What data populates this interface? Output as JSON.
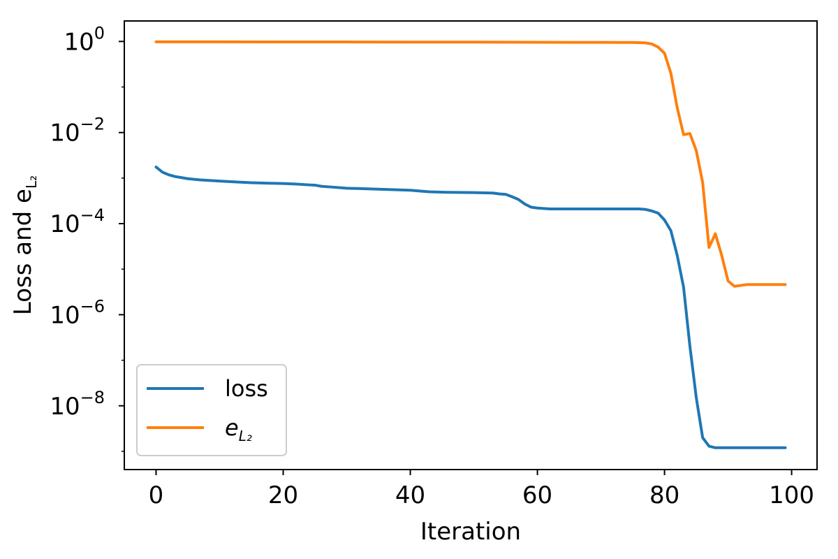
{
  "chart_data": {
    "type": "line",
    "xlabel": "Iteration",
    "ylabel": "Loss and e_{L₂}",
    "ylabel_parts": {
      "main": "Loss and e",
      "sub": "L₂"
    },
    "y_scale": "log",
    "xlim": [
      -5,
      104
    ],
    "ylim_exponent": [
      -9.4,
      0.45
    ],
    "x_ticks": [
      {
        "value": 0,
        "label": "0"
      },
      {
        "value": 20,
        "label": "20"
      },
      {
        "value": 40,
        "label": "40"
      },
      {
        "value": 60,
        "label": "60"
      },
      {
        "value": 80,
        "label": "80"
      },
      {
        "value": 100,
        "label": "100"
      }
    ],
    "y_ticks": [
      {
        "exponent": 0,
        "base": "10",
        "exp": "0"
      },
      {
        "exponent": -2,
        "base": "10",
        "exp": "−2"
      },
      {
        "exponent": -4,
        "base": "10",
        "exp": "−4"
      },
      {
        "exponent": -6,
        "base": "10",
        "exp": "−6"
      },
      {
        "exponent": -8,
        "base": "10",
        "exp": "−8"
      }
    ],
    "grid": false,
    "legend_position": "lower-left",
    "series": [
      {
        "name": "loss",
        "color": "#1f77b4",
        "x": [
          0,
          1,
          2,
          3,
          5,
          7,
          10,
          12,
          15,
          18,
          20,
          22,
          24,
          25,
          26,
          28,
          30,
          35,
          40,
          43,
          45,
          50,
          53,
          54,
          55,
          56,
          57,
          58,
          59,
          60,
          62,
          65,
          70,
          75,
          76,
          77,
          78,
          79,
          80,
          81,
          82,
          83,
          84,
          85,
          86,
          87,
          88,
          90,
          95,
          99
        ],
        "y": [
          0.00175,
          0.00135,
          0.00118,
          0.00108,
          0.00097,
          0.00091,
          0.00086,
          0.00083,
          0.00079,
          0.00077,
          0.00076,
          0.00074,
          0.00071,
          0.0007,
          0.00066,
          0.00063,
          0.0006,
          0.00057,
          0.00054,
          0.0005,
          0.00049,
          0.00048,
          0.00047,
          0.00045,
          0.00044,
          0.00039,
          0.00034,
          0.00027,
          0.00023,
          0.00022,
          0.00021,
          0.00021,
          0.00021,
          0.00021,
          0.00021,
          0.000205,
          0.00019,
          0.00017,
          0.00012,
          7e-05,
          2e-05,
          4e-06,
          2e-07,
          1.5e-08,
          2e-09,
          1.3e-09,
          1.2e-09,
          1.2e-09,
          1.2e-09,
          1.2e-09
        ]
      },
      {
        "name": "e_{L₂}",
        "label_parts": {
          "main": "e",
          "sub": "L₂"
        },
        "color": "#ff7f0e",
        "x": [
          0,
          10,
          20,
          30,
          40,
          50,
          55,
          60,
          65,
          70,
          75,
          77,
          78,
          79,
          80,
          81,
          82,
          83,
          84,
          85,
          86,
          87,
          88,
          89,
          90,
          91,
          93,
          95,
          99
        ],
        "y": [
          0.98,
          0.98,
          0.975,
          0.975,
          0.97,
          0.97,
          0.965,
          0.96,
          0.955,
          0.955,
          0.95,
          0.93,
          0.88,
          0.75,
          0.55,
          0.2,
          0.035,
          0.009,
          0.0095,
          0.004,
          0.0008,
          3e-05,
          6e-05,
          2e-05,
          5.5e-06,
          4.2e-06,
          4.6e-06,
          4.6e-06,
          4.6e-06
        ]
      }
    ]
  }
}
